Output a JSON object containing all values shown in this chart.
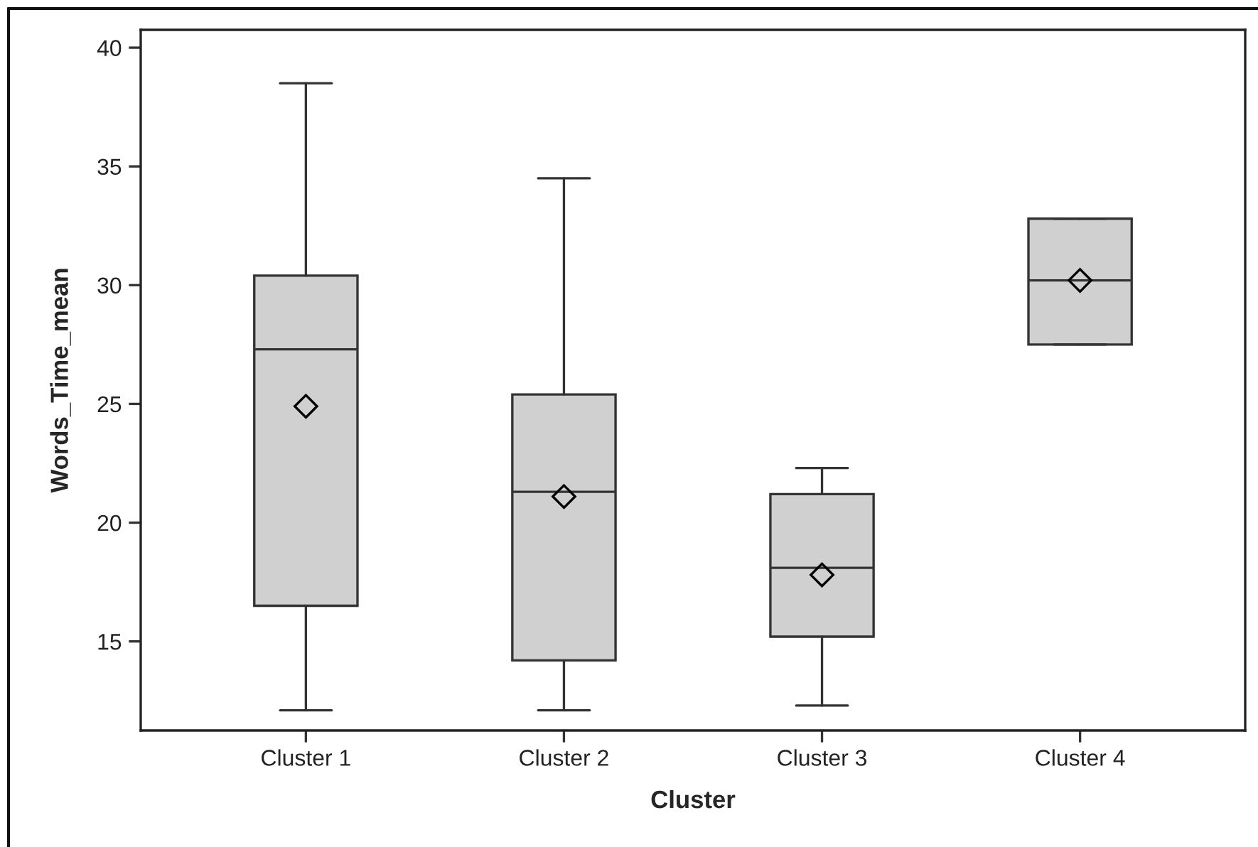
{
  "chart_data": {
    "type": "box",
    "xlabel": "Cluster",
    "ylabel": "Words_Time_mean",
    "categories": [
      "Cluster 1",
      "Cluster 2",
      "Cluster 3",
      "Cluster 4"
    ],
    "boxes": [
      {
        "low": 12.1,
        "q1": 16.5,
        "median": 27.3,
        "q3": 30.4,
        "high": 38.5,
        "mean": 24.9
      },
      {
        "low": 12.1,
        "q1": 14.2,
        "median": 21.3,
        "q3": 25.4,
        "high": 34.5,
        "mean": 21.1
      },
      {
        "low": 12.3,
        "q1": 15.2,
        "median": 18.1,
        "q3": 21.2,
        "high": 22.3,
        "mean": 17.8
      },
      {
        "low": 27.5,
        "q1": 27.5,
        "median": 30.2,
        "q3": 32.8,
        "high": 32.8,
        "mean": 30.2
      }
    ],
    "color": "#d0d0d0",
    "ylim": [
      11.25,
      40.75
    ],
    "yticks": [
      15,
      20,
      25,
      30,
      35,
      40
    ],
    "grid": false,
    "marker": "diamond"
  }
}
